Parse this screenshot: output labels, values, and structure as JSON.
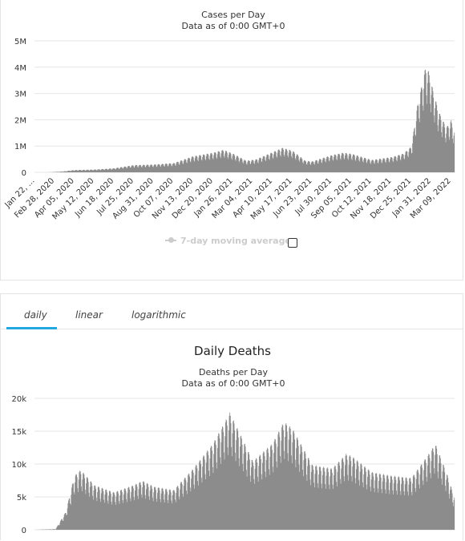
{
  "chart_data": [
    {
      "type": "bar",
      "title": "Cases per Day",
      "subtitle": "Data as of 0:00 GMT+0",
      "xlabel": "",
      "ylabel": "",
      "ylim": [
        0,
        5000000
      ],
      "yticks": [
        "0",
        "1M",
        "2M",
        "3M",
        "4M",
        "5M"
      ],
      "grid": true,
      "color": "#8c8c8c",
      "x_tick_labels": [
        "Jan 22, ...",
        "Feb 28, 2020",
        "Apr 05, 2020",
        "May 12, 2020",
        "Jun 18, 2020",
        "Jul 25, 2020",
        "Aug 31, 2020",
        "Oct 07, 2020",
        "Nov 13, 2020",
        "Dec 20, 2020",
        "Jan 26, 2021",
        "Mar 04, 2021",
        "Apr 10, 2021",
        "May 17, 2021",
        "Jun 23, 2021",
        "Jul 30, 2021",
        "Sep 05, 2021",
        "Oct 12, 2021",
        "Nov 18, 2021",
        "Dec 25, 2021",
        "Jan 31, 2022",
        "Mar 09, 2022"
      ],
      "series_anchors": [
        [
          "2020-01-22",
          0
        ],
        [
          "2020-02-20",
          2000
        ],
        [
          "2020-03-15",
          30000
        ],
        [
          "2020-04-05",
          80000
        ],
        [
          "2020-05-12",
          95000
        ],
        [
          "2020-06-18",
          140000
        ],
        [
          "2020-07-25",
          250000
        ],
        [
          "2020-08-31",
          270000
        ],
        [
          "2020-10-07",
          320000
        ],
        [
          "2020-11-13",
          560000
        ],
        [
          "2020-12-20",
          680000
        ],
        [
          "2021-01-08",
          780000
        ],
        [
          "2021-01-26",
          650000
        ],
        [
          "2021-02-20",
          400000
        ],
        [
          "2021-03-10",
          450000
        ],
        [
          "2021-04-10",
          700000
        ],
        [
          "2021-04-28",
          850000
        ],
        [
          "2021-05-17",
          750000
        ],
        [
          "2021-06-10",
          400000
        ],
        [
          "2021-06-23",
          380000
        ],
        [
          "2021-07-30",
          600000
        ],
        [
          "2021-08-20",
          680000
        ],
        [
          "2021-09-05",
          640000
        ],
        [
          "2021-10-12",
          430000
        ],
        [
          "2021-11-18",
          530000
        ],
        [
          "2021-12-10",
          650000
        ],
        [
          "2021-12-25",
          900000
        ],
        [
          "2022-01-05",
          2300000
        ],
        [
          "2022-01-13",
          3000000
        ],
        [
          "2022-01-21",
          3700000
        ],
        [
          "2022-01-26",
          3500000
        ],
        [
          "2022-02-05",
          2700000
        ],
        [
          "2022-02-14",
          2100000
        ],
        [
          "2022-02-28",
          1550000
        ],
        [
          "2022-03-09",
          1800000
        ],
        [
          "2022-03-15",
          1400000
        ]
      ],
      "legend": [
        {
          "label": "7-day moving average",
          "enabled": false
        }
      ]
    },
    {
      "type": "bar",
      "title": "Daily Deaths",
      "subtitle_1": "Deaths per Day",
      "subtitle_2": "Data as of 0:00 GMT+0",
      "xlabel": "",
      "ylabel": "",
      "ylim": [
        0,
        20000
      ],
      "yticks": [
        "0",
        "5k",
        "10k",
        "15k",
        "20k"
      ],
      "grid": true,
      "color": "#8c8c8c",
      "series_anchors": [
        [
          "2020-01-22",
          0
        ],
        [
          "2020-03-01",
          100
        ],
        [
          "2020-03-20",
          2500
        ],
        [
          "2020-04-05",
          7500
        ],
        [
          "2020-04-17",
          8300
        ],
        [
          "2020-05-12",
          6200
        ],
        [
          "2020-06-18",
          5200
        ],
        [
          "2020-07-25",
          6200
        ],
        [
          "2020-08-10",
          6800
        ],
        [
          "2020-08-31",
          6000
        ],
        [
          "2020-10-07",
          5500
        ],
        [
          "2020-11-13",
          8500
        ],
        [
          "2020-12-20",
          12000
        ],
        [
          "2021-01-20",
          16200
        ],
        [
          "2021-02-10",
          13000
        ],
        [
          "2021-03-04",
          9500
        ],
        [
          "2021-04-10",
          12000
        ],
        [
          "2021-05-01",
          15000
        ],
        [
          "2021-05-17",
          14000
        ],
        [
          "2021-06-23",
          9000
        ],
        [
          "2021-07-30",
          8500
        ],
        [
          "2021-08-25",
          10500
        ],
        [
          "2021-09-05",
          10200
        ],
        [
          "2021-10-12",
          8000
        ],
        [
          "2021-11-18",
          7500
        ],
        [
          "2021-12-25",
          7200
        ],
        [
          "2022-01-31",
          11000
        ],
        [
          "2022-02-07",
          12000
        ],
        [
          "2022-02-28",
          8000
        ],
        [
          "2022-03-15",
          4500
        ]
      ]
    }
  ],
  "cases_chart": {
    "title": "Cases per Day",
    "subtitle": "Data as of 0:00 GMT+0",
    "legend_label": "7-day moving average"
  },
  "deaths_chart": {
    "heading": "Daily Deaths",
    "subtitle_1": "Deaths per Day",
    "subtitle_2": "Data as of 0:00 GMT+0"
  },
  "tabs": [
    {
      "label": "daily",
      "active": true
    },
    {
      "label": "linear",
      "active": false
    },
    {
      "label": "logarithmic",
      "active": false
    }
  ],
  "colors": {
    "bar": "#8c8c8c",
    "grid": "#e6e6e6",
    "tab_accent": "#22a7e0",
    "legend_disabled": "#cccccc"
  }
}
